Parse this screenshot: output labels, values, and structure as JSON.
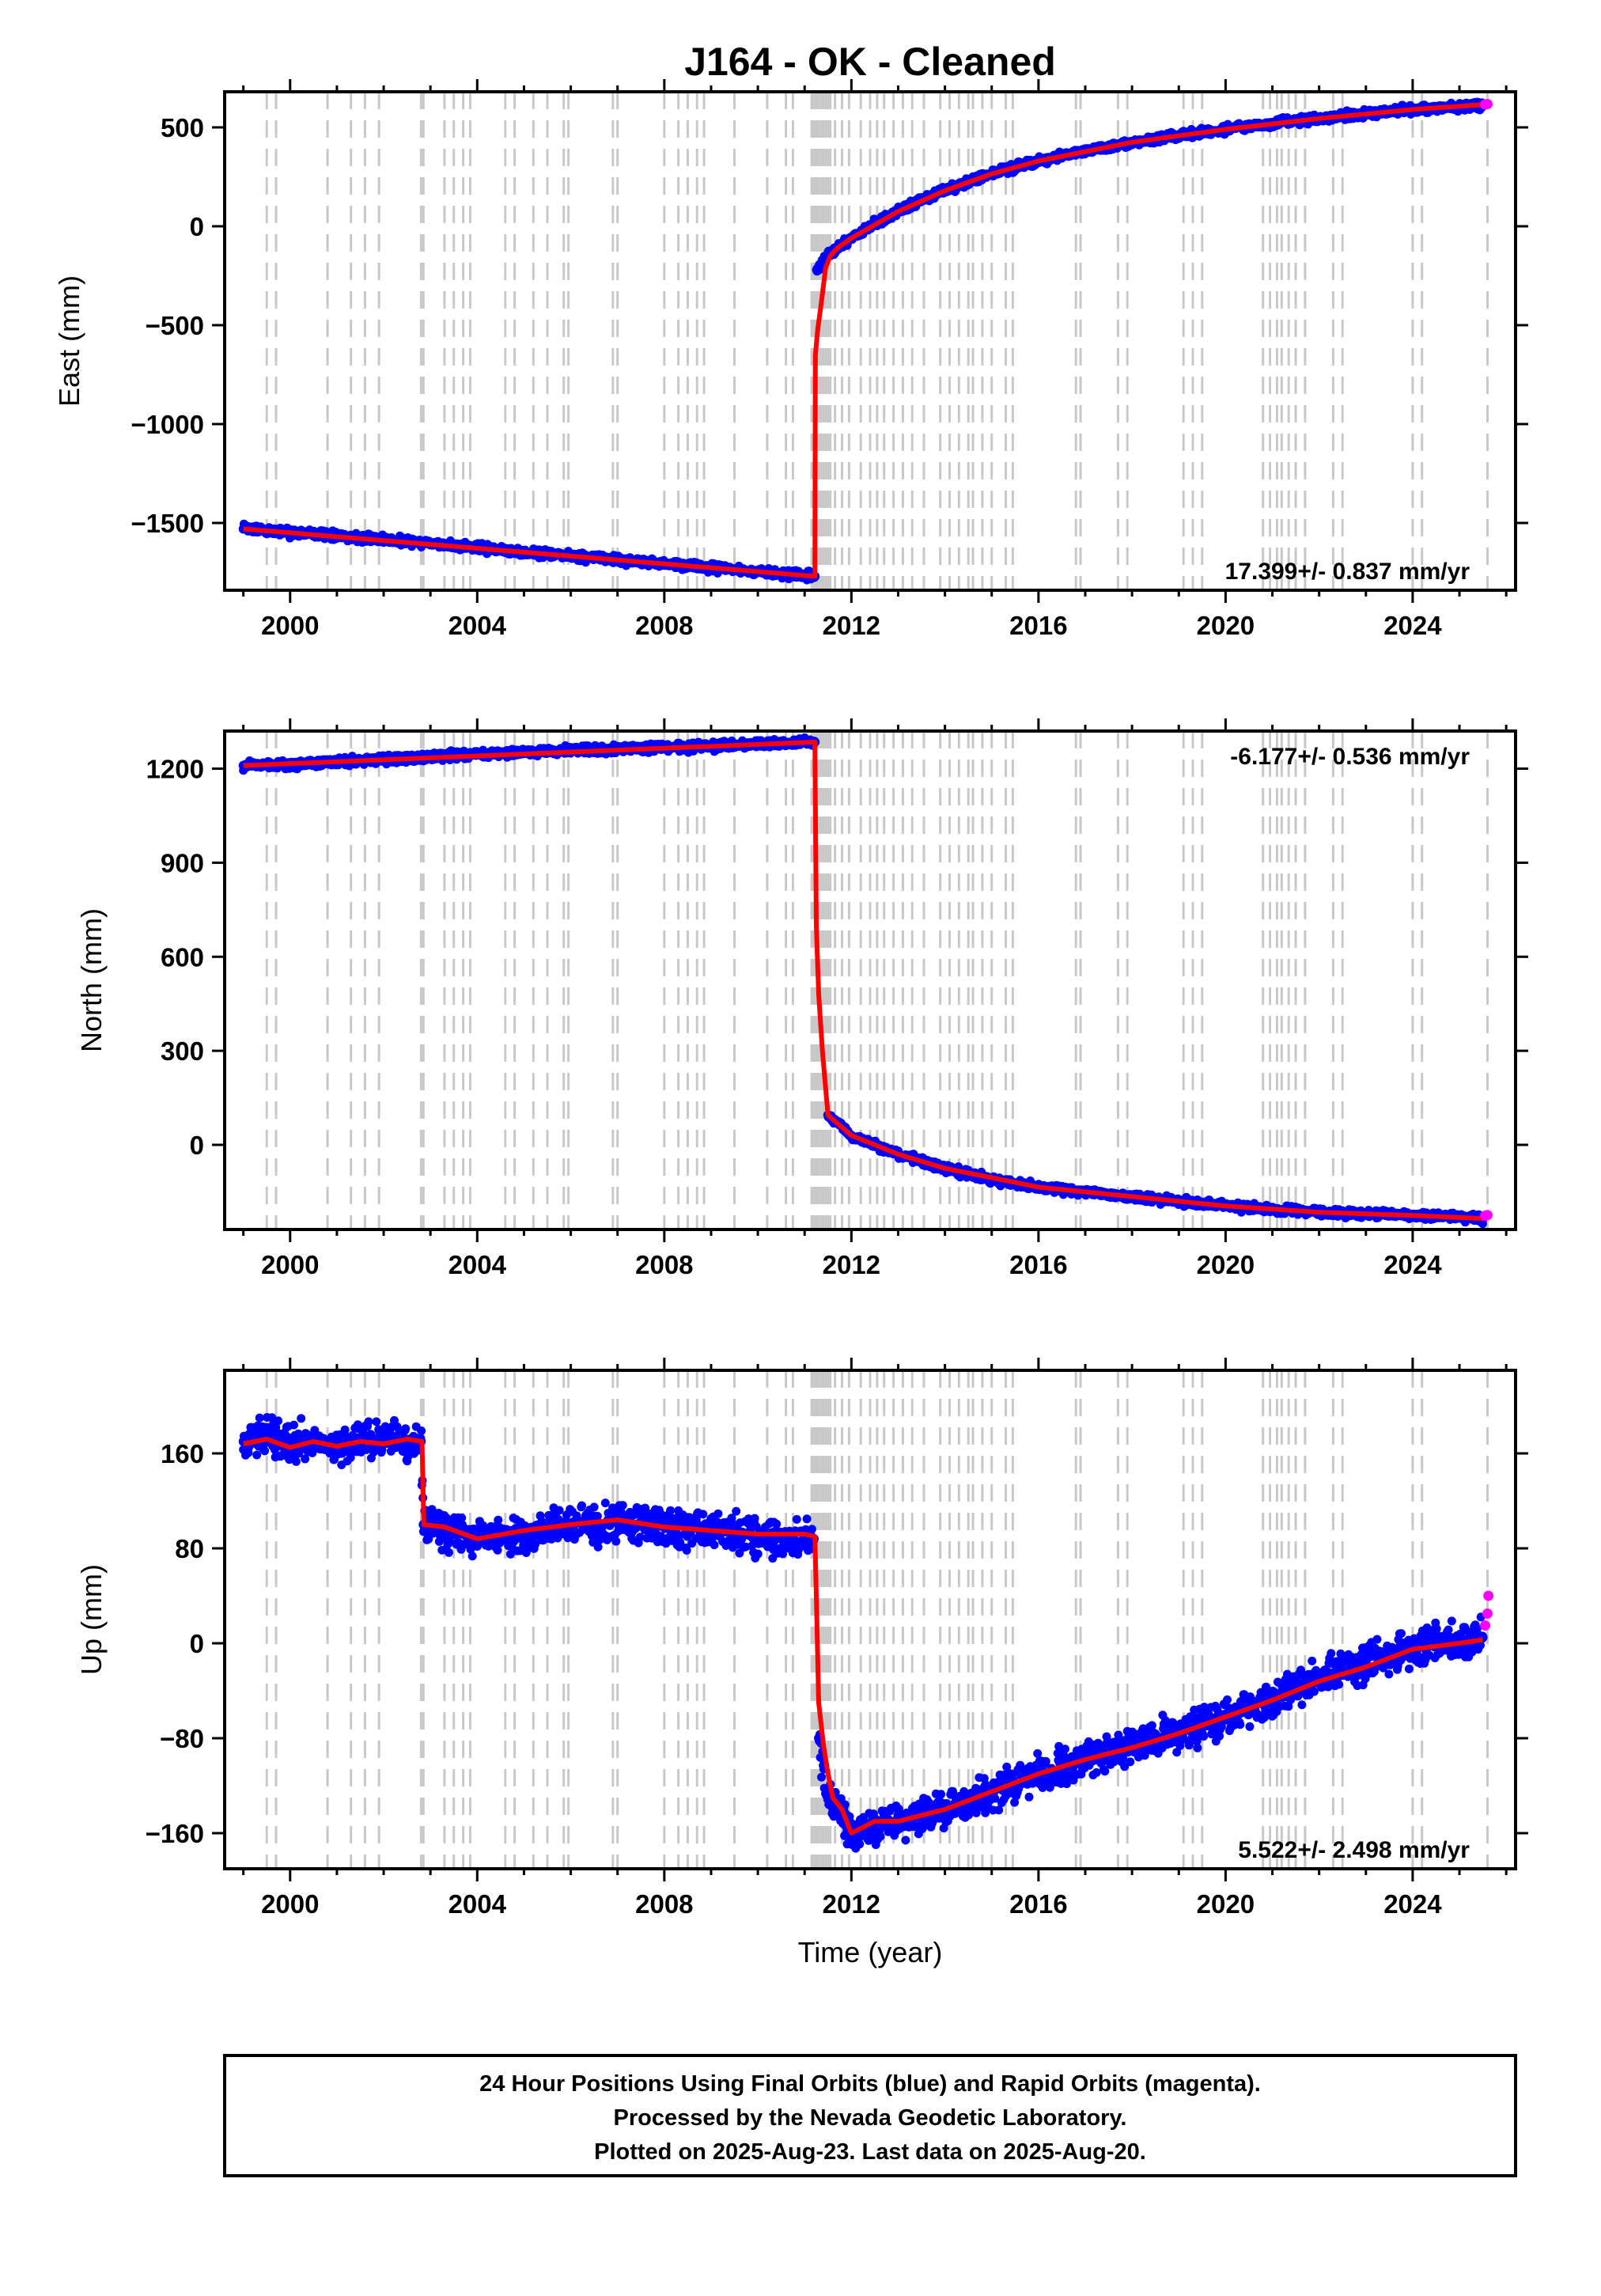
{
  "page": {
    "title": "J164  - OK - Cleaned",
    "xlabel": "Time (year)",
    "footer_lines": [
      "24 Hour Positions Using Final Orbits (blue) and Rapid Orbits (magenta).",
      "Processed by the Nevada Geodetic Laboratory.",
      "Plotted on 2025-Aug-23. Last data on 2025-Aug-20."
    ]
  },
  "colors": {
    "final_orbit_points": "#0000ff",
    "rapid_orbit_points": "#ff00ff",
    "model_line": "#ff0000",
    "event_lines": "#c8c8c8",
    "frame": "#000000"
  },
  "chart_data": [
    {
      "type": "scatter",
      "component": "east",
      "ylabel": "East (mm)",
      "xlim": [
        1998.6,
        2026.2
      ],
      "ylim": [
        -1840,
        680
      ],
      "x_ticks": [
        2000,
        2004,
        2008,
        2012,
        2016,
        2020,
        2024
      ],
      "y_ticks": [
        -1500,
        -1000,
        -500,
        0,
        500
      ],
      "rate_label": "17.399+/- 0.837 mm/yr",
      "series": [
        {
          "style": "final-points",
          "x": [
            1999.0,
            2000.0,
            2001.0,
            2002.0,
            2003.0,
            2004.0,
            2005.0,
            2006.0,
            2007.0,
            2008.0,
            2009.0,
            2010.0,
            2011.0,
            2011.22,
            2011.26,
            2011.5,
            2012.0,
            2012.5,
            2013.0,
            2013.5,
            2014.0,
            2014.5,
            2015.0,
            2015.5,
            2016.0,
            2017.0,
            2018.0,
            2019.0,
            2020.0,
            2021.0,
            2022.0,
            2023.0,
            2024.0,
            2025.0,
            2025.5
          ],
          "y": [
            -1530,
            -1547,
            -1565,
            -1585,
            -1605,
            -1625,
            -1648,
            -1665,
            -1685,
            -1705,
            -1725,
            -1748,
            -1765,
            -1770,
            -220,
            -140,
            -60,
            15,
            75,
            130,
            180,
            225,
            265,
            300,
            330,
            380,
            425,
            460,
            490,
            520,
            545,
            570,
            590,
            605,
            615
          ]
        },
        {
          "style": "model-line",
          "x": [
            1999.0,
            2011.22,
            2011.23,
            2011.28,
            2011.35,
            2011.45,
            2011.55,
            2011.7,
            2012.0,
            2013.0,
            2014.0,
            2015.0,
            2016.0,
            2018.0,
            2020.0,
            2022.0,
            2024.0,
            2025.5
          ],
          "y": [
            -1530,
            -1770,
            -650,
            -520,
            -400,
            -210,
            -150,
            -110,
            -60,
            75,
            180,
            265,
            330,
            425,
            490,
            545,
            590,
            615
          ]
        },
        {
          "style": "rapid-points",
          "x": [
            2025.55,
            2025.6
          ],
          "y": [
            616,
            618
          ]
        }
      ]
    },
    {
      "type": "scatter",
      "component": "north",
      "ylabel": "North (mm)",
      "xlim": [
        1998.6,
        2026.2
      ],
      "ylim": [
        -270,
        1320
      ],
      "x_ticks": [
        2000,
        2004,
        2008,
        2012,
        2016,
        2020,
        2024
      ],
      "y_ticks": [
        0,
        300,
        600,
        900,
        1200
      ],
      "rate_label": "-6.177+/- 0.536 mm/yr",
      "series": [
        {
          "style": "final-points",
          "x": [
            1999.0,
            2000.0,
            2001.0,
            2002.0,
            2003.0,
            2004.0,
            2005.0,
            2006.0,
            2007.0,
            2008.0,
            2009.0,
            2010.0,
            2011.0,
            2011.22,
            2011.5,
            2012.0,
            2013.0,
            2014.0,
            2015.0,
            2016.0,
            2017.0,
            2018.0,
            2019.0,
            2020.0,
            2021.0,
            2022.0,
            2023.0,
            2024.0,
            2025.0,
            2025.5
          ],
          "y": [
            1210,
            1215,
            1222,
            1230,
            1238,
            1245,
            1252,
            1258,
            1262,
            1268,
            1272,
            1278,
            1284,
            1285,
            95,
            30,
            -30,
            -75,
            -110,
            -135,
            -150,
            -165,
            -180,
            -195,
            -205,
            -215,
            -220,
            -225,
            -230,
            -235
          ]
        },
        {
          "style": "model-line",
          "x": [
            1999.0,
            2011.22,
            2011.25,
            2011.3,
            2011.38,
            2011.45,
            2011.5,
            2012.0,
            2013.0,
            2014.0,
            2016.0,
            2018.0,
            2020.0,
            2022.0,
            2024.0,
            2025.5
          ],
          "y": [
            1210,
            1285,
            700,
            480,
            300,
            180,
            95,
            30,
            -30,
            -75,
            -135,
            -165,
            -195,
            -215,
            -225,
            -235
          ]
        },
        {
          "style": "rapid-points",
          "x": [
            2025.55,
            2025.6
          ],
          "y": [
            -226,
            -224
          ]
        }
      ]
    },
    {
      "type": "scatter",
      "component": "up",
      "ylabel": "Up (mm)",
      "xlim": [
        1998.6,
        2026.2
      ],
      "ylim": [
        -190,
        230
      ],
      "x_ticks": [
        2000,
        2004,
        2008,
        2012,
        2016,
        2020,
        2024
      ],
      "y_ticks": [
        -160,
        -80,
        0,
        80,
        160
      ],
      "rate_label": "5.522+/- 2.498 mm/yr",
      "series": [
        {
          "style": "final-points",
          "x": [
            1999.0,
            1999.5,
            2000.0,
            2000.5,
            2001.0,
            2001.5,
            2002.0,
            2002.5,
            2002.8,
            2002.85,
            2003.3,
            2004.0,
            2004.5,
            2005.0,
            2005.5,
            2006.0,
            2006.5,
            2007.0,
            2007.5,
            2008.0,
            2008.5,
            2009.0,
            2009.5,
            2010.0,
            2010.5,
            2011.0,
            2011.2,
            2011.3,
            2011.5,
            2011.8,
            2012.0,
            2012.5,
            2013.0,
            2013.5,
            2014.0,
            2014.5,
            2015.0,
            2015.5,
            2016.0,
            2016.5,
            2017.0,
            2017.5,
            2018.0,
            2018.5,
            2019.0,
            2019.5,
            2020.0,
            2020.5,
            2021.0,
            2021.5,
            2022.0,
            2022.5,
            2023.0,
            2023.5,
            2024.0,
            2024.5,
            2025.0,
            2025.5
          ],
          "y": [
            170,
            175,
            168,
            172,
            165,
            170,
            172,
            168,
            170,
            100,
            95,
            88,
            90,
            92,
            96,
            98,
            100,
            102,
            100,
            98,
            96,
            94,
            92,
            90,
            88,
            90,
            88,
            -80,
            -130,
            -145,
            -160,
            -155,
            -150,
            -148,
            -140,
            -135,
            -125,
            -118,
            -110,
            -105,
            -98,
            -92,
            -85,
            -80,
            -75,
            -70,
            -62,
            -55,
            -45,
            -38,
            -30,
            -22,
            -15,
            -10,
            -5,
            0,
            2,
            5
          ]
        },
        {
          "style": "model-line",
          "x": [
            1999.0,
            1999.5,
            2000.0,
            2000.5,
            2001.0,
            2001.5,
            2002.0,
            2002.5,
            2002.82,
            2002.86,
            2003.3,
            2004.0,
            2005.0,
            2006.0,
            2007.0,
            2008.0,
            2009.0,
            2010.0,
            2011.0,
            2011.22,
            2011.25,
            2011.3,
            2011.4,
            2011.5,
            2011.6,
            2011.8,
            2012.0,
            2012.5,
            2013.0,
            2014.0,
            2015.0,
            2016.0,
            2017.0,
            2018.0,
            2019.0,
            2020.0,
            2021.0,
            2022.0,
            2023.0,
            2024.0,
            2025.0,
            2025.5
          ],
          "y": [
            168,
            172,
            165,
            170,
            166,
            170,
            168,
            172,
            170,
            100,
            98,
            88,
            95,
            100,
            104,
            98,
            95,
            92,
            92,
            90,
            40,
            -50,
            -85,
            -110,
            -130,
            -140,
            -160,
            -150,
            -150,
            -140,
            -125,
            -110,
            -98,
            -88,
            -76,
            -62,
            -48,
            -32,
            -20,
            -5,
            0,
            3
          ]
        },
        {
          "style": "rapid-points",
          "x": [
            2025.55,
            2025.6,
            2025.62
          ],
          "y": [
            15,
            25,
            40
          ]
        }
      ]
    }
  ]
}
